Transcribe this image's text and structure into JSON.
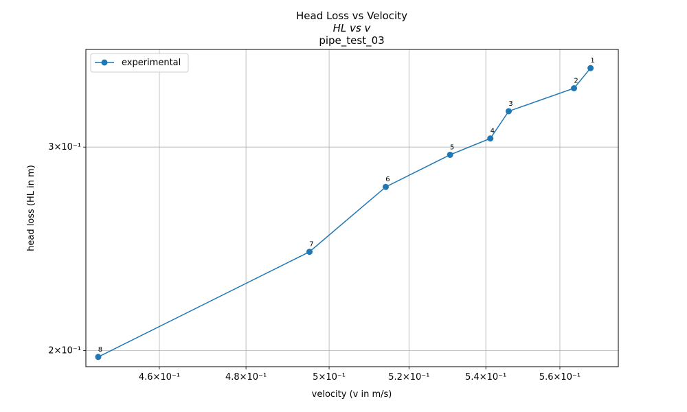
{
  "chart_data": {
    "type": "line",
    "title": "Head Loss vs Velocity",
    "subtitle": "HL vs v",
    "subtitle2": "pipe_test_03",
    "xlabel": "velocity (v in m/s)",
    "ylabel": "head loss (HL in m)",
    "xscale": "log",
    "yscale": "log",
    "xlim": [
      0.4437,
      0.5763
    ],
    "ylim": [
      0.1937,
      0.3644
    ],
    "grid": true,
    "legend_position": "top-left",
    "x_ticks": [
      {
        "value": 0.46,
        "label": "4.6×10⁻¹"
      },
      {
        "value": 0.48,
        "label": "4.8×10⁻¹"
      },
      {
        "value": 0.5,
        "label": "5×10⁻¹"
      },
      {
        "value": 0.52,
        "label": "5.2×10⁻¹"
      },
      {
        "value": 0.54,
        "label": "5.4×10⁻¹"
      },
      {
        "value": 0.56,
        "label": "5.6×10⁻¹"
      }
    ],
    "y_ticks": [
      {
        "value": 0.2,
        "label": "2×10⁻¹"
      },
      {
        "value": 0.3,
        "label": "3×10⁻¹"
      }
    ],
    "series": [
      {
        "name": "experimental",
        "color": "#1f77b4",
        "points": [
          {
            "x": 0.5685,
            "y": 0.3511,
            "label": "1"
          },
          {
            "x": 0.5639,
            "y": 0.3373,
            "label": "2"
          },
          {
            "x": 0.5461,
            "y": 0.3222,
            "label": "3"
          },
          {
            "x": 0.5412,
            "y": 0.3052,
            "label": "4"
          },
          {
            "x": 0.5306,
            "y": 0.2954,
            "label": "5"
          },
          {
            "x": 0.5141,
            "y": 0.2771,
            "label": "6"
          },
          {
            "x": 0.4952,
            "y": 0.2435,
            "label": "7"
          },
          {
            "x": 0.4464,
            "y": 0.1975,
            "label": "8"
          }
        ]
      }
    ]
  }
}
